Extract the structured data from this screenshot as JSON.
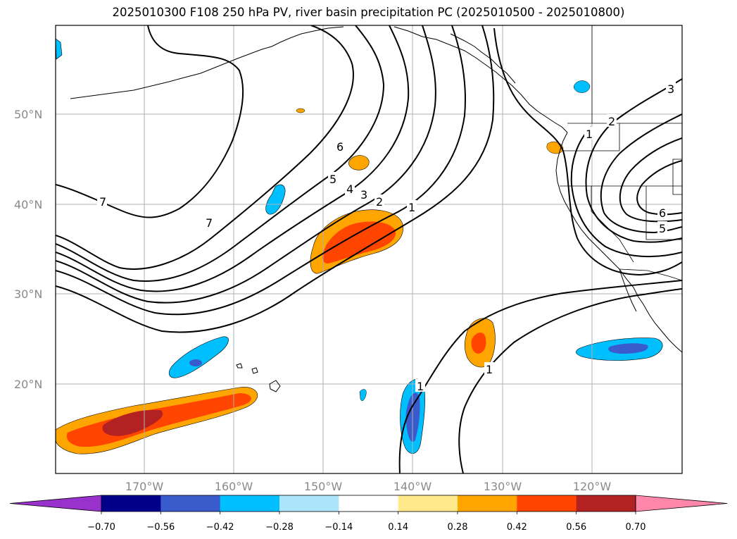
{
  "title": "2025010300 F108 250 hPa PV, river basin precipitation PC (2025010500 - 2025010800)",
  "lat_labels": [
    "50°N",
    "40°N",
    "30°N",
    "20°N"
  ],
  "lon_labels": [
    "170°W",
    "160°W",
    "150°W",
    "140°W",
    "130°W",
    "120°W"
  ],
  "contour_labels": [
    "7",
    "7",
    "6",
    "5",
    "4",
    "3",
    "2",
    "1",
    "1",
    "1",
    "3",
    "2",
    "1",
    "6",
    "5"
  ],
  "colorbar": {
    "tick_labels": [
      "−0.70",
      "−0.56",
      "−0.42",
      "−0.28",
      "−0.14",
      "0.14",
      "0.28",
      "0.42",
      "0.56",
      "0.70"
    ],
    "colors": [
      "#9932cc",
      "#00008b",
      "#3a5bcc",
      "#00bfff",
      "#aee4fb",
      "#ffffff",
      "#ffe98a",
      "#ffa500",
      "#ff4500",
      "#b22222",
      "#ff88aa"
    ]
  }
}
